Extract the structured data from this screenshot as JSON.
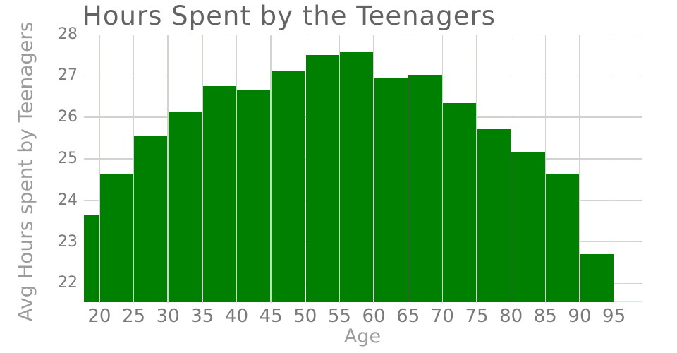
{
  "chart": {
    "title": "Hours Spent by the Teenagers",
    "x_axis_label": "Age",
    "y_axis_label": "Avg Hours spent by Teenagers"
  },
  "chart_data": {
    "type": "bar",
    "subtype": "histogram",
    "title": "Hours Spent by the Teenagers",
    "xlabel": "Age",
    "ylabel": "Avg Hours spent by Teenagers",
    "x_domain": [
      17.7,
      99.1
    ],
    "y_domain": [
      21.54,
      28.0
    ],
    "x_ticks": [
      20,
      25,
      30,
      35,
      40,
      45,
      50,
      55,
      60,
      65,
      70,
      75,
      80,
      85,
      90,
      95
    ],
    "y_ticks": [
      22,
      23,
      24,
      25,
      26,
      27,
      28
    ],
    "grid": true,
    "legend": false,
    "bin_width": 5,
    "bins": [
      {
        "start": 15,
        "end": 20,
        "value": 23.65
      },
      {
        "start": 20,
        "end": 25,
        "value": 24.62
      },
      {
        "start": 25,
        "end": 30,
        "value": 25.56
      },
      {
        "start": 30,
        "end": 35,
        "value": 26.14
      },
      {
        "start": 35,
        "end": 40,
        "value": 26.75
      },
      {
        "start": 40,
        "end": 45,
        "value": 26.65
      },
      {
        "start": 45,
        "end": 50,
        "value": 27.1
      },
      {
        "start": 50,
        "end": 55,
        "value": 27.5
      },
      {
        "start": 55,
        "end": 60,
        "value": 27.58
      },
      {
        "start": 60,
        "end": 65,
        "value": 26.94
      },
      {
        "start": 65,
        "end": 70,
        "value": 27.02
      },
      {
        "start": 70,
        "end": 75,
        "value": 26.35
      },
      {
        "start": 75,
        "end": 80,
        "value": 25.72
      },
      {
        "start": 80,
        "end": 85,
        "value": 25.16
      },
      {
        "start": 85,
        "end": 90,
        "value": 24.64
      },
      {
        "start": 90,
        "end": 95,
        "value": 22.7
      },
      {
        "start": 95,
        "end": 100,
        "value": 21.56
      }
    ],
    "colors": {
      "bar": "#008000",
      "bar_gap": "#ffffff",
      "grid": "#d2d2ce",
      "title_text": "#636363",
      "tick_text": "#7a7a7a",
      "axis_title_text": "#9b9b9b",
      "clipped_sliver": "#d9ead9",
      "background": "#ffffff"
    }
  }
}
